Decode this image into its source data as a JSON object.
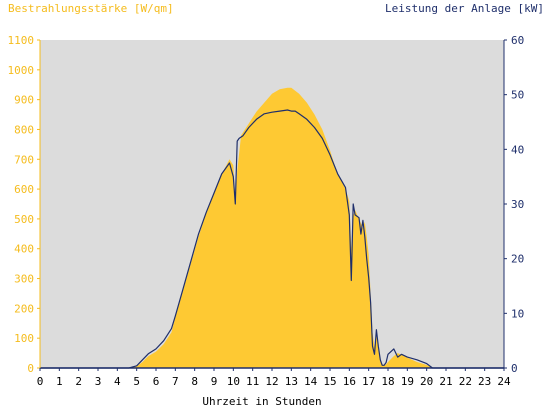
{
  "chart_data": {
    "type": "area",
    "title_left": "Bestrahlungsstärke [W/qm]",
    "title_right": "Leistung der Anlage [kW]",
    "xlabel": "Uhrzeit in Stunden",
    "x_ticks": [
      "0",
      "1",
      "2",
      "3",
      "4",
      "5",
      "6",
      "7",
      "8",
      "9",
      "10",
      "11",
      "12",
      "13",
      "14",
      "15",
      "16",
      "17",
      "18",
      "19",
      "20",
      "21",
      "22",
      "23",
      "24"
    ],
    "xlim": [
      0,
      24
    ],
    "y_left": {
      "lim": [
        0,
        1100
      ],
      "ticks": [
        "0",
        "100",
        "200",
        "300",
        "400",
        "500",
        "600",
        "700",
        "800",
        "900",
        "1000",
        "1100"
      ]
    },
    "y_right": {
      "lim": [
        0,
        60
      ],
      "ticks": [
        "0",
        "10",
        "20",
        "30",
        "40",
        "50",
        "60"
      ]
    },
    "grid": false,
    "colors": {
      "plot_bg": "#dcdcdc",
      "area": "#fec933",
      "line": "#1f2f6b",
      "left_axis_text": "#f5bc1d",
      "right_axis_text": "#1f2f6b"
    },
    "series": [
      {
        "axis": "left",
        "kind": "area",
        "x": [
          0,
          4.6,
          5.0,
          5.3,
          5.6,
          6.0,
          6.4,
          6.8,
          7.0,
          7.4,
          7.8,
          8.2,
          8.6,
          9.0,
          9.4,
          9.8,
          10.0,
          10.1,
          10.2,
          10.4,
          10.5,
          10.8,
          11.2,
          11.6,
          12.0,
          12.4,
          12.8,
          13.0,
          13.4,
          13.8,
          14.2,
          14.6,
          15.0,
          15.4,
          15.8,
          16.0,
          16.1,
          16.2,
          16.3,
          16.5,
          16.7,
          16.8,
          16.9,
          17.0,
          17.1,
          17.2,
          17.3,
          17.4,
          17.5,
          17.6,
          17.7,
          17.8,
          17.9,
          18.0,
          18.3,
          18.5,
          18.7,
          19.0,
          19.5,
          20.0,
          20.3,
          20.5,
          21,
          24
        ],
        "values": [
          0,
          0,
          5,
          20,
          40,
          55,
          80,
          120,
          170,
          260,
          350,
          440,
          520,
          590,
          650,
          700,
          680,
          560,
          660,
          780,
          790,
          820,
          860,
          890,
          920,
          935,
          940,
          940,
          920,
          890,
          850,
          800,
          730,
          650,
          600,
          560,
          400,
          510,
          530,
          500,
          470,
          490,
          440,
          380,
          250,
          120,
          70,
          110,
          70,
          30,
          12,
          10,
          12,
          20,
          40,
          50,
          45,
          35,
          20,
          10,
          0,
          0,
          0,
          0
        ]
      },
      {
        "axis": "right",
        "kind": "line",
        "x": [
          0,
          4.6,
          5.0,
          5.3,
          5.6,
          6.0,
          6.4,
          6.8,
          7.0,
          7.4,
          7.8,
          8.2,
          8.6,
          9.0,
          9.4,
          9.8,
          10.0,
          10.1,
          10.2,
          10.3,
          10.5,
          10.8,
          11.2,
          11.6,
          12.0,
          12.4,
          12.8,
          13.0,
          13.2,
          13.4,
          13.8,
          14.2,
          14.6,
          15.0,
          15.4,
          15.8,
          16.0,
          16.1,
          16.2,
          16.3,
          16.5,
          16.6,
          16.7,
          16.8,
          16.9,
          17.0,
          17.1,
          17.2,
          17.3,
          17.4,
          17.5,
          17.6,
          17.7,
          17.8,
          17.9,
          18.0,
          18.3,
          18.5,
          18.7,
          19.0,
          19.5,
          20.0,
          20.3,
          20.5,
          21,
          24
        ],
        "values": [
          0,
          0,
          0.4,
          1.5,
          2.6,
          3.5,
          5.0,
          7.2,
          9.5,
          14.5,
          19.5,
          24.5,
          28.5,
          32.0,
          35.5,
          37.5,
          35.0,
          30.0,
          41.5,
          42.0,
          42.5,
          44.0,
          45.5,
          46.5,
          46.8,
          47.0,
          47.2,
          47.0,
          47.0,
          46.5,
          45.5,
          44.0,
          42.0,
          39.0,
          35.5,
          33.0,
          28.0,
          16.0,
          30.0,
          28.0,
          27.5,
          24.5,
          27.0,
          24.0,
          20.0,
          16.5,
          12.0,
          4.0,
          2.5,
          7.0,
          4.0,
          1.5,
          0.5,
          0.5,
          1.0,
          2.5,
          3.5,
          2.0,
          2.5,
          2.0,
          1.5,
          0.8,
          0,
          0,
          0,
          0
        ]
      }
    ]
  }
}
